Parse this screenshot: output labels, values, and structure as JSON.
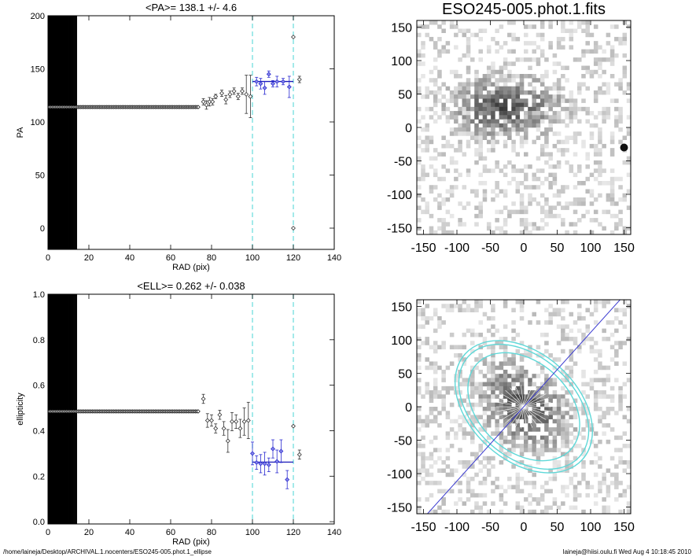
{
  "footer": {
    "path": "/home/laineja/Desktop/ARCHIVAL.1.nocenters/ESO245-005.phot.1_ellipse",
    "user_time": "laineja@hiisi.oulu.fi  Wed Aug  4 10:18:45 2010"
  },
  "colors": {
    "profile_points": "#000000",
    "fit_points": "#2a2ad0",
    "fit_line": "#1a1ab8",
    "marker_lines": "#66dddd",
    "image_ellipses": "#5fd8d8",
    "image_axis_line": "#3a3ad0"
  },
  "chart_data": [
    {
      "type": "scatter",
      "title": "<PA>= 138.1 +/-   4.6",
      "xlabel": "RAD (pix)",
      "ylabel": "PA",
      "xlim": [
        0,
        140
      ],
      "ylim": [
        -20,
        200
      ],
      "xticks": [
        "0",
        "20",
        "40",
        "60",
        "80",
        "100",
        "120",
        "140"
      ],
      "yticks": [
        "0",
        "50",
        "100",
        "150",
        "200"
      ],
      "xtick_values": [
        0,
        20,
        40,
        60,
        80,
        100,
        120,
        140
      ],
      "ytick_values": [
        0,
        50,
        100,
        150,
        200
      ],
      "grid": false,
      "isophote_lines_x_max": 75,
      "constant_series": {
        "x_min": 0,
        "x_max": 74,
        "y": 114
      },
      "marker_lines_x": [
        100,
        120
      ],
      "fit_range": [
        100,
        120
      ],
      "fit_value": 138.1,
      "points": [
        {
          "x": 76,
          "y": 119,
          "err": 3
        },
        {
          "x": 77.5,
          "y": 116,
          "err": 4
        },
        {
          "x": 79,
          "y": 119,
          "err": 4
        },
        {
          "x": 80.5,
          "y": 119,
          "err": 3
        },
        {
          "x": 82,
          "y": 124,
          "err": 2
        },
        {
          "x": 85,
          "y": 127,
          "err": 3
        },
        {
          "x": 87,
          "y": 121,
          "err": 4
        },
        {
          "x": 89,
          "y": 126,
          "err": 3
        },
        {
          "x": 91,
          "y": 129,
          "err": 3
        },
        {
          "x": 93,
          "y": 124,
          "err": 3
        },
        {
          "x": 95,
          "y": 129,
          "err": 3
        },
        {
          "x": 97,
          "y": 126,
          "err": 18
        },
        {
          "x": 99,
          "y": 124,
          "err": 20
        },
        {
          "x": 102,
          "y": 138,
          "err": 4
        },
        {
          "x": 104,
          "y": 136,
          "err": 5
        },
        {
          "x": 106,
          "y": 132,
          "err": 6
        },
        {
          "x": 108,
          "y": 145,
          "err": 3
        },
        {
          "x": 110,
          "y": 136,
          "err": 3
        },
        {
          "x": 112,
          "y": 138,
          "err": 5
        },
        {
          "x": 115,
          "y": 138,
          "err": 3
        },
        {
          "x": 118,
          "y": 133,
          "err": 10
        },
        {
          "x": 120,
          "y": 180,
          "err": 0
        },
        {
          "x": 120,
          "y": 0,
          "err": 0
        },
        {
          "x": 123,
          "y": 140,
          "err": 3
        }
      ]
    },
    {
      "type": "scatter",
      "title": "<ELL>= 0.262 +/-  0.038",
      "xlabel": "RAD (pix)",
      "ylabel": "ellipticity",
      "xlim": [
        0,
        140
      ],
      "ylim": [
        -0.01,
        1.0
      ],
      "xticks": [
        "0",
        "20",
        "40",
        "60",
        "80",
        "100",
        "120",
        "140"
      ],
      "yticks": [
        "0.0",
        "0.2",
        "0.4",
        "0.6",
        "0.8",
        "1.0"
      ],
      "xtick_values": [
        0,
        20,
        40,
        60,
        80,
        100,
        120,
        140
      ],
      "ytick_values": [
        0,
        0.2,
        0.4,
        0.6,
        0.8,
        1.0
      ],
      "grid": false,
      "isophote_lines_x_max": 75,
      "constant_series": {
        "x_min": 0,
        "x_max": 74,
        "y": 0.485
      },
      "marker_lines_x": [
        100,
        120
      ],
      "fit_range": [
        100,
        120
      ],
      "fit_value": 0.262,
      "points": [
        {
          "x": 76,
          "y": 0.54,
          "err": 0.02
        },
        {
          "x": 78,
          "y": 0.445,
          "err": 0.03
        },
        {
          "x": 80,
          "y": 0.445,
          "err": 0.025
        },
        {
          "x": 82,
          "y": 0.41,
          "err": 0.02
        },
        {
          "x": 84,
          "y": 0.47,
          "err": 0.02
        },
        {
          "x": 86,
          "y": 0.41,
          "err": 0.03
        },
        {
          "x": 88,
          "y": 0.355,
          "err": 0.05
        },
        {
          "x": 90,
          "y": 0.44,
          "err": 0.04
        },
        {
          "x": 92,
          "y": 0.44,
          "err": 0.03
        },
        {
          "x": 94,
          "y": 0.41,
          "err": 0.04
        },
        {
          "x": 96,
          "y": 0.44,
          "err": 0.06
        },
        {
          "x": 98,
          "y": 0.445,
          "err": 0.08
        },
        {
          "x": 100,
          "y": 0.3,
          "err": 0.05
        },
        {
          "x": 102,
          "y": 0.26,
          "err": 0.03
        },
        {
          "x": 104,
          "y": 0.255,
          "err": 0.04
        },
        {
          "x": 106,
          "y": 0.255,
          "err": 0.05
        },
        {
          "x": 108,
          "y": 0.25,
          "err": 0.03
        },
        {
          "x": 110,
          "y": 0.32,
          "err": 0.04
        },
        {
          "x": 112,
          "y": 0.265,
          "err": 0.05
        },
        {
          "x": 114,
          "y": 0.31,
          "err": 0.05
        },
        {
          "x": 117,
          "y": 0.185,
          "err": 0.04
        },
        {
          "x": 120,
          "y": 0.42,
          "err": 0
        },
        {
          "x": 123,
          "y": 0.295,
          "err": 0.02
        }
      ]
    },
    {
      "type": "heatmap",
      "title": "ESO245-005.phot.1.fits",
      "xlim": [
        -160,
        160
      ],
      "ylim": [
        -160,
        160
      ],
      "xticks": [
        "-150",
        "-100",
        "-50",
        "0",
        "50",
        "100",
        "150"
      ],
      "yticks": [
        "-150",
        "-100",
        "-50",
        "0",
        "50",
        "100",
        "150"
      ],
      "tick_values": [
        -150,
        -100,
        -50,
        0,
        50,
        100,
        150
      ],
      "grid": false
    },
    {
      "type": "heatmap",
      "title": "",
      "xlim": [
        -160,
        160
      ],
      "ylim": [
        -160,
        160
      ],
      "xticks": [
        "-150",
        "-100",
        "-50",
        "0",
        "50",
        "100",
        "150"
      ],
      "yticks": [
        "-150",
        "-100",
        "-50",
        "0",
        "50",
        "100",
        "150"
      ],
      "tick_values": [
        -150,
        -100,
        -50,
        0,
        50,
        100,
        150
      ],
      "ellipses": [
        {
          "semi_major": 95,
          "semi_minor": 67,
          "pa_deg": 138
        },
        {
          "semi_major": 112,
          "semi_minor": 75,
          "pa_deg": 138
        },
        {
          "semi_major": 118,
          "semi_minor": 80,
          "pa_deg": 138
        }
      ],
      "major_axis_pa_deg": 138,
      "grid": false
    }
  ]
}
